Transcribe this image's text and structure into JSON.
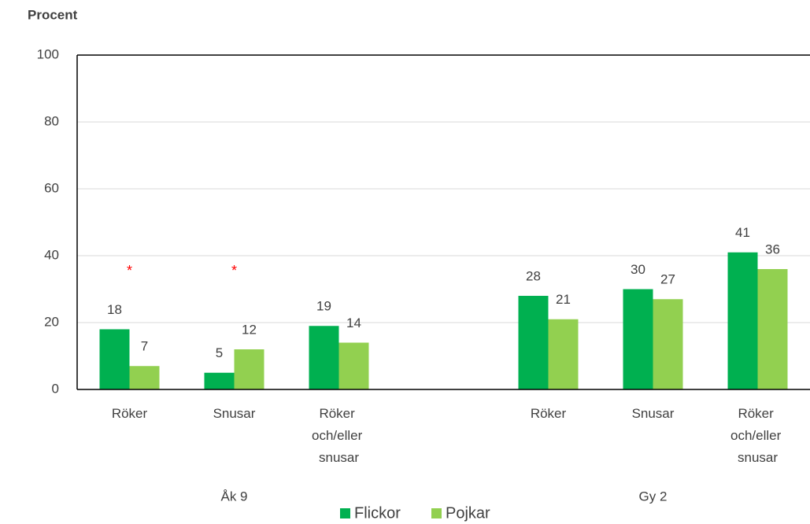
{
  "chart_data": {
    "type": "bar",
    "ylabel": "Procent",
    "categories": [
      "Röker",
      "Snusar",
      "Röker och/eller snusar",
      null,
      "Röker",
      "Snusar",
      "Röker och/eller snusar"
    ],
    "groups": [
      "Åk 9",
      "Gy 2"
    ],
    "series": [
      {
        "name": "Flickor",
        "color": "#00b050",
        "values": [
          18,
          5,
          19,
          null,
          28,
          30,
          41
        ]
      },
      {
        "name": "Pojkar",
        "color": "#92d050",
        "values": [
          7,
          12,
          14,
          null,
          21,
          27,
          36
        ]
      }
    ],
    "annotations": [
      {
        "text": "*",
        "category": 0
      },
      {
        "text": "*",
        "category": 1
      }
    ],
    "ylim": [
      0,
      100
    ],
    "yticks": [
      0,
      20,
      40,
      60,
      80,
      100
    ],
    "grid": true,
    "legend": "bottom"
  }
}
